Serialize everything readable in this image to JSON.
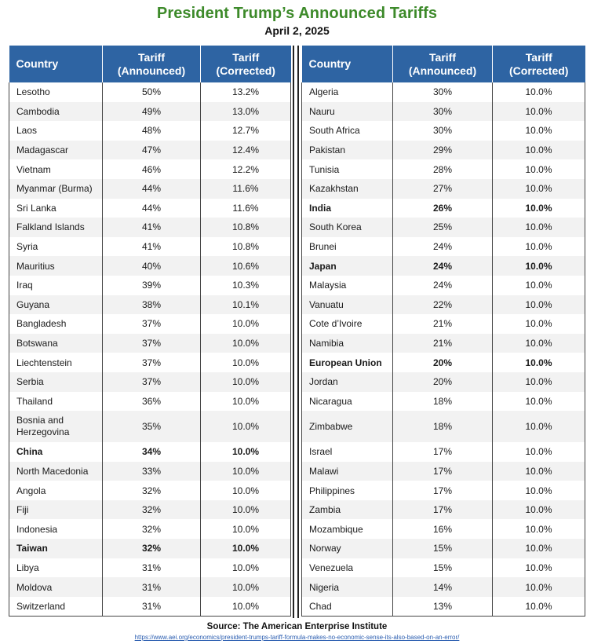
{
  "title": "President Trump’s Announced Tariffs",
  "subtitle": "April 2, 2025",
  "columns": {
    "country": "Country",
    "announced_line1": "Tariff",
    "announced_line2": "(Announced)",
    "corrected_line1": "Tariff",
    "corrected_line2": "(Corrected)"
  },
  "left_rows": [
    {
      "country": "Lesotho",
      "announced": "50%",
      "corrected": "13.2%",
      "bold": false
    },
    {
      "country": "Cambodia",
      "announced": "49%",
      "corrected": "13.0%",
      "bold": false
    },
    {
      "country": "Laos",
      "announced": "48%",
      "corrected": "12.7%",
      "bold": false
    },
    {
      "country": "Madagascar",
      "announced": "47%",
      "corrected": "12.4%",
      "bold": false
    },
    {
      "country": "Vietnam",
      "announced": "46%",
      "corrected": "12.2%",
      "bold": false
    },
    {
      "country": "Myanmar (Burma)",
      "announced": "44%",
      "corrected": "11.6%",
      "bold": false
    },
    {
      "country": "Sri Lanka",
      "announced": "44%",
      "corrected": "11.6%",
      "bold": false
    },
    {
      "country": "Falkland Islands",
      "announced": "41%",
      "corrected": "10.8%",
      "bold": false
    },
    {
      "country": "Syria",
      "announced": "41%",
      "corrected": "10.8%",
      "bold": false
    },
    {
      "country": "Mauritius",
      "announced": "40%",
      "corrected": "10.6%",
      "bold": false
    },
    {
      "country": "Iraq",
      "announced": "39%",
      "corrected": "10.3%",
      "bold": false
    },
    {
      "country": "Guyana",
      "announced": "38%",
      "corrected": "10.1%",
      "bold": false
    },
    {
      "country": "Bangladesh",
      "announced": "37%",
      "corrected": "10.0%",
      "bold": false
    },
    {
      "country": "Botswana",
      "announced": "37%",
      "corrected": "10.0%",
      "bold": false
    },
    {
      "country": "Liechtenstein",
      "announced": "37%",
      "corrected": "10.0%",
      "bold": false
    },
    {
      "country": "Serbia",
      "announced": "37%",
      "corrected": "10.0%",
      "bold": false
    },
    {
      "country": "Thailand",
      "announced": "36%",
      "corrected": "10.0%",
      "bold": false
    },
    {
      "country": "Bosnia and Herzegovina",
      "announced": "35%",
      "corrected": "10.0%",
      "bold": false,
      "tall": true
    },
    {
      "country": "China",
      "announced": "34%",
      "corrected": "10.0%",
      "bold": true
    },
    {
      "country": "North Macedonia",
      "announced": "33%",
      "corrected": "10.0%",
      "bold": false
    },
    {
      "country": "Angola",
      "announced": "32%",
      "corrected": "10.0%",
      "bold": false
    },
    {
      "country": "Fiji",
      "announced": "32%",
      "corrected": "10.0%",
      "bold": false
    },
    {
      "country": "Indonesia",
      "announced": "32%",
      "corrected": "10.0%",
      "bold": false
    },
    {
      "country": "Taiwan",
      "announced": "32%",
      "corrected": "10.0%",
      "bold": true
    },
    {
      "country": "Libya",
      "announced": "31%",
      "corrected": "10.0%",
      "bold": false
    },
    {
      "country": "Moldova",
      "announced": "31%",
      "corrected": "10.0%",
      "bold": false
    },
    {
      "country": "Switzerland",
      "announced": "31%",
      "corrected": "10.0%",
      "bold": false
    }
  ],
  "right_rows": [
    {
      "country": "Algeria",
      "announced": "30%",
      "corrected": "10.0%",
      "bold": false
    },
    {
      "country": "Nauru",
      "announced": "30%",
      "corrected": "10.0%",
      "bold": false
    },
    {
      "country": "South Africa",
      "announced": "30%",
      "corrected": "10.0%",
      "bold": false
    },
    {
      "country": "Pakistan",
      "announced": "29%",
      "corrected": "10.0%",
      "bold": false
    },
    {
      "country": "Tunisia",
      "announced": "28%",
      "corrected": "10.0%",
      "bold": false
    },
    {
      "country": "Kazakhstan",
      "announced": "27%",
      "corrected": "10.0%",
      "bold": false
    },
    {
      "country": "India",
      "announced": "26%",
      "corrected": "10.0%",
      "bold": true
    },
    {
      "country": "South Korea",
      "announced": "25%",
      "corrected": "10.0%",
      "bold": false
    },
    {
      "country": "Brunei",
      "announced": "24%",
      "corrected": "10.0%",
      "bold": false
    },
    {
      "country": "Japan",
      "announced": "24%",
      "corrected": "10.0%",
      "bold": true
    },
    {
      "country": "Malaysia",
      "announced": "24%",
      "corrected": "10.0%",
      "bold": false
    },
    {
      "country": "Vanuatu",
      "announced": "22%",
      "corrected": "10.0%",
      "bold": false
    },
    {
      "country": "Cote d’Ivoire",
      "announced": "21%",
      "corrected": "10.0%",
      "bold": false
    },
    {
      "country": "Namibia",
      "announced": "21%",
      "corrected": "10.0%",
      "bold": false
    },
    {
      "country": "European Union",
      "announced": "20%",
      "corrected": "10.0%",
      "bold": true
    },
    {
      "country": "Jordan",
      "announced": "20%",
      "corrected": "10.0%",
      "bold": false
    },
    {
      "country": "Nicaragua",
      "announced": "18%",
      "corrected": "10.0%",
      "bold": false
    },
    {
      "country": "Zimbabwe",
      "announced": "18%",
      "corrected": "10.0%",
      "bold": false,
      "tall": true
    },
    {
      "country": "Israel",
      "announced": "17%",
      "corrected": "10.0%",
      "bold": false
    },
    {
      "country": "Malawi",
      "announced": "17%",
      "corrected": "10.0%",
      "bold": false
    },
    {
      "country": "Philippines",
      "announced": "17%",
      "corrected": "10.0%",
      "bold": false
    },
    {
      "country": "Zambia",
      "announced": "17%",
      "corrected": "10.0%",
      "bold": false
    },
    {
      "country": "Mozambique",
      "announced": "16%",
      "corrected": "10.0%",
      "bold": false
    },
    {
      "country": "Norway",
      "announced": "15%",
      "corrected": "10.0%",
      "bold": false
    },
    {
      "country": "Venezuela",
      "announced": "15%",
      "corrected": "10.0%",
      "bold": false
    },
    {
      "country": "Nigeria",
      "announced": "14%",
      "corrected": "10.0%",
      "bold": false
    },
    {
      "country": "Chad",
      "announced": "13%",
      "corrected": "10.0%",
      "bold": false
    }
  ],
  "source": "Source: The American Enterprise Institute",
  "url": "https://www.aei.org/economics/president-trumps-tariff-formula-makes-no-economic-sense-its-also-based-on-an-error/",
  "colors": {
    "title": "#3d8a2a",
    "header_bg": "#2e64a3",
    "stripe": "#f2f2f2",
    "link": "#2a5db0"
  }
}
